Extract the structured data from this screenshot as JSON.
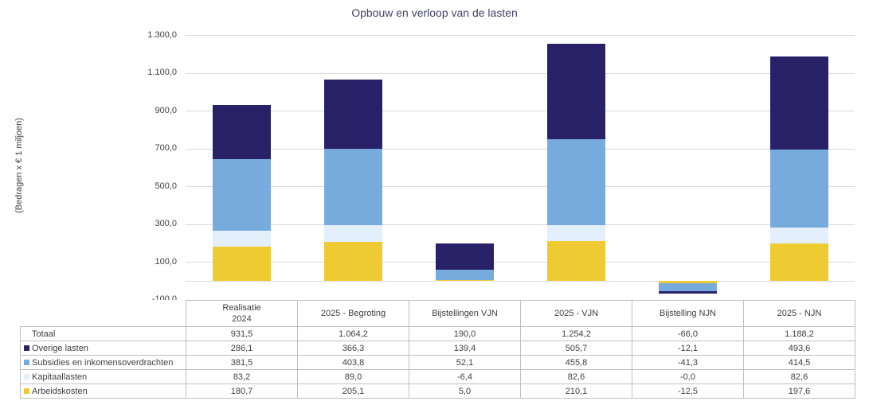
{
  "title": "Opbouw en verloop van de lasten",
  "y_axis": {
    "label": "(Bedragen x € 1 miljoen)",
    "ticks": [
      {
        "value": 1300,
        "label": "1.300,0"
      },
      {
        "value": 1100,
        "label": "1.100,0"
      },
      {
        "value": 900,
        "label": "900,0"
      },
      {
        "value": 700,
        "label": "700,0"
      },
      {
        "value": 500,
        "label": "500,0"
      },
      {
        "value": 300,
        "label": "300,0"
      },
      {
        "value": 100,
        "label": "100,0"
      },
      {
        "value": 0,
        "label": ""
      },
      {
        "value": -100,
        "label": "-100,0"
      }
    ]
  },
  "chart_data": {
    "type": "bar",
    "stacked": true,
    "title": "Opbouw en verloop van de lasten",
    "ylabel": "(Bedragen x € 1 miljoen)",
    "ylim": [
      -100,
      1300
    ],
    "grid": true,
    "legend_position": "table-row-labels",
    "categories": [
      "Realisatie\n2024",
      "2025 - Begroting",
      "Bijstellingen VJN",
      "2025 - VJN",
      "Bijstelling NJN",
      "2025 - NJN"
    ],
    "series": [
      {
        "name": "Arbeidskosten",
        "color": "#EFCB33",
        "values": [
          180.7,
          205.1,
          5.0,
          210.1,
          -12.5,
          197.6
        ]
      },
      {
        "name": "Kapitaallasten",
        "color": "#E3F0FB",
        "values": [
          83.2,
          89.0,
          -6.4,
          82.6,
          -0.0,
          82.6
        ]
      },
      {
        "name": "Subsidies en inkomensoverdrachten",
        "color": "#78ABDD",
        "values": [
          381.5,
          403.8,
          52.1,
          455.8,
          -41.3,
          414.5
        ]
      },
      {
        "name": "Overige lasten",
        "color": "#292168",
        "values": [
          286.1,
          366.3,
          139.4,
          505.7,
          -12.1,
          493.6
        ]
      }
    ],
    "totals": {
      "name": "Totaal",
      "values": [
        931.5,
        1064.2,
        190.0,
        1254.2,
        -66.0,
        1188.2
      ]
    }
  },
  "table": {
    "rows": [
      {
        "label": "Totaal",
        "swatch": "",
        "values": [
          "931,5",
          "1.064,2",
          "190,0",
          "1.254,2",
          "-66,0",
          "1.188,2"
        ]
      },
      {
        "label": "Overige lasten",
        "swatch": "#292168",
        "values": [
          "286,1",
          "366,3",
          "139,4",
          "505,7",
          "-12,1",
          "493,6"
        ]
      },
      {
        "label": "Subsidies en inkomensoverdrachten",
        "swatch": "#78ABDD",
        "values": [
          "381,5",
          "403,8",
          "52,1",
          "455,8",
          "-41,3",
          "414,5"
        ]
      },
      {
        "label": "Kapitaallasten",
        "swatch": "#E3F0FB",
        "values": [
          "83,2",
          "89,0",
          "-6,4",
          "82,6",
          "-0,0",
          "82,6"
        ]
      },
      {
        "label": "Arbeidskosten",
        "swatch": "#EFCB33",
        "values": [
          "180,7",
          "205,1",
          "5,0",
          "210,1",
          "-12,5",
          "197,6"
        ]
      }
    ]
  },
  "colors": {
    "grid": "#D9D9D9",
    "table_border": "#BFBFBF",
    "text": "#404040",
    "title": "#44446B",
    "background": "#FFFFFF"
  }
}
